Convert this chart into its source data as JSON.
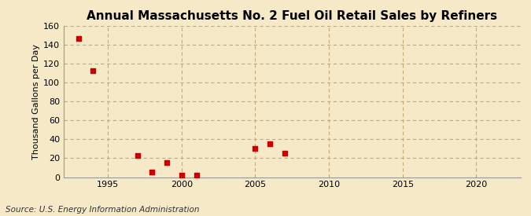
{
  "title": "Annual Massachusetts No. 2 Fuel Oil Retail Sales by Refiners",
  "ylabel": "Thousand Gallons per Day",
  "source": "Source: U.S. Energy Information Administration",
  "background_color": "#f5e9c8",
  "plot_bg_color": "#f5e9c8",
  "x_data": [
    1993,
    1994,
    1997,
    1998,
    1999,
    2000,
    2001,
    2005,
    2006,
    2007
  ],
  "y_data": [
    147,
    113,
    23,
    5,
    15,
    2,
    2,
    30,
    35,
    25
  ],
  "marker_color": "#cc0000",
  "marker_size": 18,
  "xlim": [
    1992,
    2023
  ],
  "ylim": [
    0,
    160
  ],
  "yticks": [
    0,
    20,
    40,
    60,
    80,
    100,
    120,
    140,
    160
  ],
  "xticks": [
    1995,
    2000,
    2005,
    2010,
    2015,
    2020
  ],
  "grid_color": "#c8a878",
  "title_fontsize": 11,
  "label_fontsize": 8,
  "tick_fontsize": 8,
  "source_fontsize": 7.5
}
